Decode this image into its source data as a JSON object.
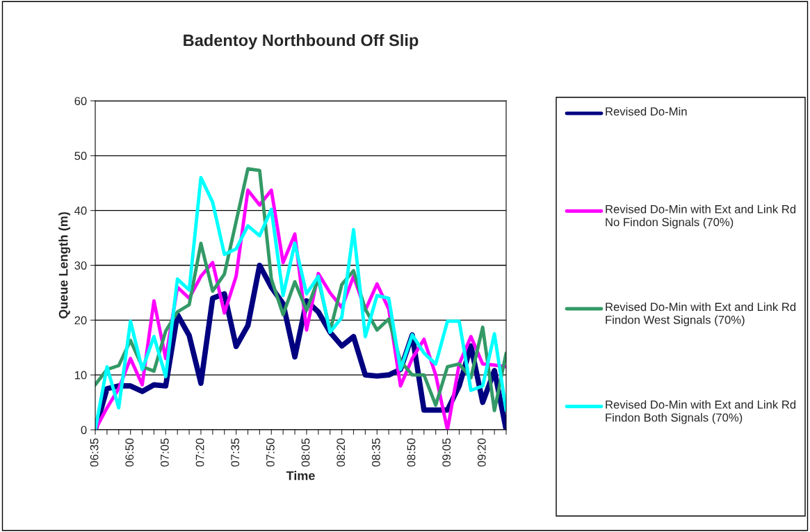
{
  "chart_data": {
    "type": "line",
    "title": "Badentoy Northbound Off Slip",
    "xlabel": "Time",
    "ylabel": "Queue Length (m)",
    "categories": [
      "06:35",
      null,
      null,
      "06:50",
      null,
      null,
      "07:05",
      null,
      null,
      "07:20",
      null,
      null,
      "07:35",
      null,
      null,
      "07:50",
      null,
      null,
      "08:05",
      null,
      null,
      "08:20",
      null,
      null,
      "08:35",
      null,
      null,
      "08:50",
      null,
      null,
      "09:05",
      null,
      null,
      "09:20",
      null,
      null
    ],
    "ylim": [
      0,
      60
    ],
    "yticks": [
      0,
      10,
      20,
      30,
      40,
      50,
      60
    ],
    "grid": "y",
    "legend": "right",
    "marker": "none",
    "line_style": "solid",
    "series": [
      {
        "name": "Revised Do-Min",
        "color": "#000080",
        "values": [
          0,
          7.5,
          8,
          8,
          7,
          8.2,
          8,
          21,
          17.2,
          8.5,
          24,
          24.8,
          15.2,
          19,
          30,
          26,
          23,
          13.3,
          23.5,
          21.5,
          17.8,
          15.3,
          17,
          10,
          9.8,
          10,
          11,
          17.3,
          3.6,
          3.6,
          3.6,
          8,
          15.3,
          5,
          10.8,
          0
        ]
      },
      {
        "name": "Revised Do-Min with Ext and Link Rd No Findon Signals (70%)",
        "color": "#ff00ff",
        "values": [
          0,
          4,
          7.5,
          13,
          8.2,
          23.5,
          13,
          26,
          24,
          28,
          30.5,
          21.3,
          28,
          43.7,
          41,
          43.7,
          30.5,
          35.7,
          18.2,
          28.5,
          25,
          22.3,
          28,
          21.8,
          26.6,
          22,
          8,
          13,
          16.5,
          10,
          0,
          12,
          17,
          12,
          11.8,
          11.5
        ]
      },
      {
        "name": "Revised Do-Min with Ext and Link Rd Findon West Signals (70%)",
        "color": "#339966",
        "values": [
          8.2,
          11,
          11.7,
          16.3,
          11.5,
          10.7,
          18,
          21.5,
          22.8,
          34,
          25.3,
          28.4,
          38,
          47.6,
          47.3,
          27.5,
          21,
          27,
          21.8,
          27.5,
          18,
          26.5,
          29,
          22,
          18.2,
          20.2,
          12.5,
          10,
          10,
          4.5,
          11.5,
          12,
          9.5,
          18.7,
          3.5,
          14
        ]
      },
      {
        "name": "Revised Do-Min with Ext and Link Rd Findon Both Signals (70%)",
        "color": "#00ffff",
        "values": [
          0,
          11.5,
          4,
          19.8,
          11,
          17,
          9.7,
          27.5,
          25.5,
          46,
          41.5,
          32,
          33,
          37.2,
          35.4,
          40.2,
          24.5,
          34,
          24.8,
          28,
          17.8,
          20.5,
          36.5,
          17,
          24.5,
          24,
          11,
          17.3,
          14,
          12,
          19.8,
          19.8,
          7.2,
          8,
          17.5,
          3.5
        ]
      }
    ]
  }
}
